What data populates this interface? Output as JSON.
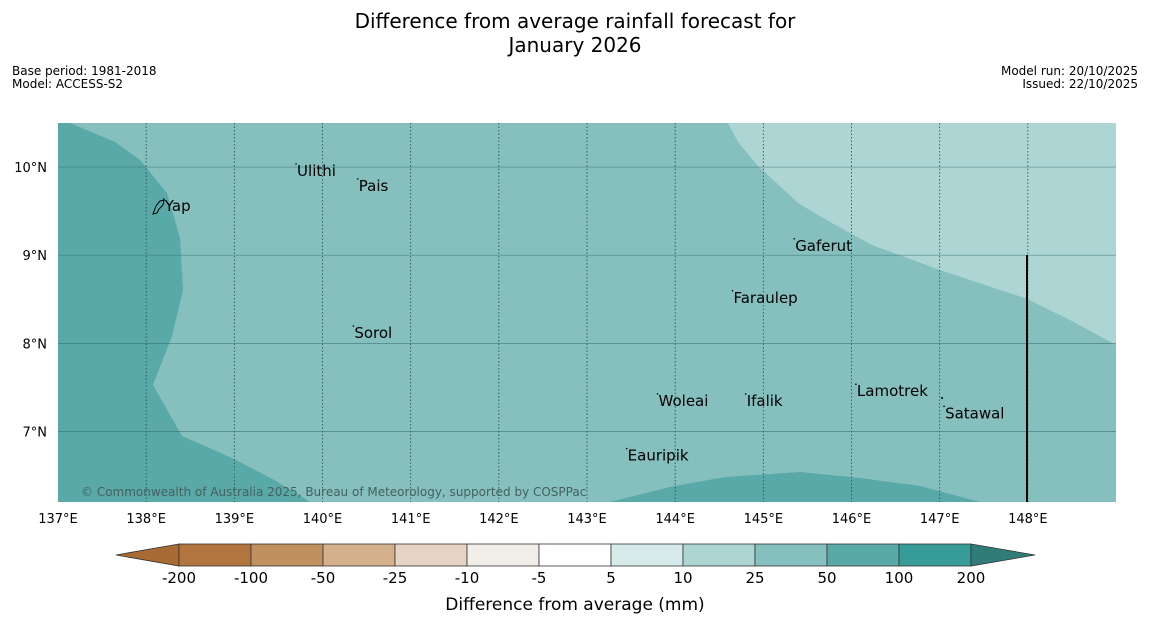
{
  "title_line1": "Difference from average rainfall forecast for",
  "title_line2": "January 2026",
  "meta_left": [
    "Base period: 1981-2018",
    "Model: ACCESS-S2"
  ],
  "meta_right": [
    "Model run: 20/10/2025",
    "Issued: 22/10/2025"
  ],
  "copyright": "© Commonwealth of Australia 2025, Bureau of Meteorology, supported by COSPPac",
  "map": {
    "lon_ticks": [
      "137°E",
      "138°E",
      "139°E",
      "140°E",
      "141°E",
      "142°E",
      "143°E",
      "144°E",
      "145°E",
      "146°E",
      "147°E",
      "148°E"
    ],
    "lat_ticks": [
      "10°N",
      "9°N",
      "8°N",
      "7°N"
    ],
    "lon_range": [
      137.0,
      149.0
    ],
    "lat_range": [
      6.2,
      10.5
    ],
    "places": [
      {
        "name": "Yap",
        "lon": 138.2,
        "lat": 9.5
      },
      {
        "name": "Ulithi",
        "lon": 139.7,
        "lat": 9.9
      },
      {
        "name": "Pais",
        "lon": 140.4,
        "lat": 9.73
      },
      {
        "name": "Gaferut",
        "lon": 145.35,
        "lat": 9.05
      },
      {
        "name": "Faraulep",
        "lon": 144.65,
        "lat": 8.46
      },
      {
        "name": "Sorol",
        "lon": 140.35,
        "lat": 8.06
      },
      {
        "name": "Lamotrek",
        "lon": 146.05,
        "lat": 7.4
      },
      {
        "name": "Woleai",
        "lon": 143.8,
        "lat": 7.29
      },
      {
        "name": "Ifalik",
        "lon": 144.8,
        "lat": 7.29
      },
      {
        "name": "Satawal",
        "lon": 147.05,
        "lat": 7.15
      },
      {
        "name": "Eauripik",
        "lon": 143.45,
        "lat": 6.67
      }
    ]
  },
  "colorbar": {
    "title": "Difference from average (mm)",
    "labels": [
      "-200",
      "-100",
      "-50",
      "-25",
      "-10",
      "-5",
      "5",
      "10",
      "25",
      "50",
      "100",
      "200"
    ],
    "colors": [
      "#a86b35",
      "#b27540",
      "#c1905f",
      "#d4b08d",
      "#e5d3c3",
      "#f1eeea",
      "#ffffff",
      "#d6ebe9",
      "#acd5d4",
      "#85bfbe",
      "#59a9a8",
      "#379b98",
      "#2f7c79"
    ]
  }
}
